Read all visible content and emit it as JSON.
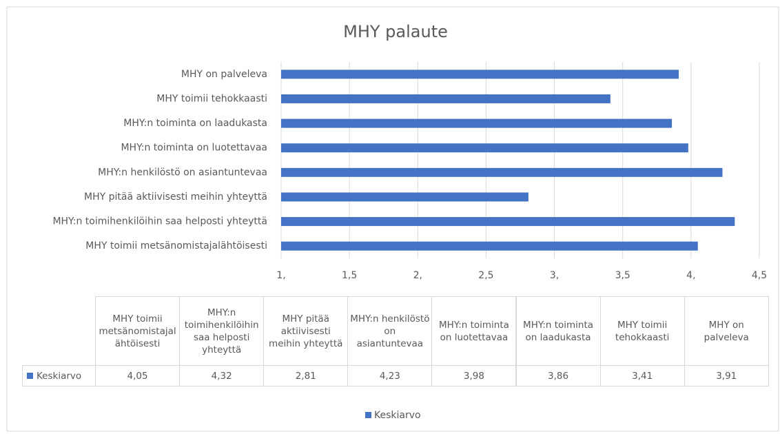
{
  "chart_data": {
    "type": "bar",
    "orientation": "horizontal",
    "title": "MHY palaute",
    "categories": [
      "MHY toimii metsänomistajalähtöisesti",
      "MHY:n toimihenkilöihin saa helposti yhteyttä",
      "MHY pitää aktiivisesti meihin yhteyttä",
      "MHY:n henkilöstö on asiantuntevaa",
      "MHY:n toiminta on luotettavaa",
      "MHY:n toiminta on laadukasta",
      "MHY toimii tehokkaasti",
      "MHY on palveleva"
    ],
    "series": [
      {
        "name": "Keskiarvo",
        "color": "#4472c4",
        "values": [
          4.05,
          4.32,
          2.81,
          4.23,
          3.98,
          3.86,
          3.41,
          3.91
        ],
        "value_labels": [
          "4,05",
          "4,32",
          "2,81",
          "4,23",
          "3,98",
          "3,86",
          "3,41",
          "3,91"
        ]
      }
    ],
    "xlim": [
      1,
      4.5
    ],
    "xticks": [
      {
        "value": 1,
        "label": "1,"
      },
      {
        "value": 1.5,
        "label": "1,5"
      },
      {
        "value": 2,
        "label": "2,"
      },
      {
        "value": 2.5,
        "label": "2,5"
      },
      {
        "value": 3,
        "label": "3,"
      },
      {
        "value": 3.5,
        "label": "3,5"
      },
      {
        "value": 4,
        "label": "4,"
      },
      {
        "value": 4.5,
        "label": "4,5"
      }
    ],
    "grid": true,
    "legend": "bottom",
    "data_table": true
  }
}
